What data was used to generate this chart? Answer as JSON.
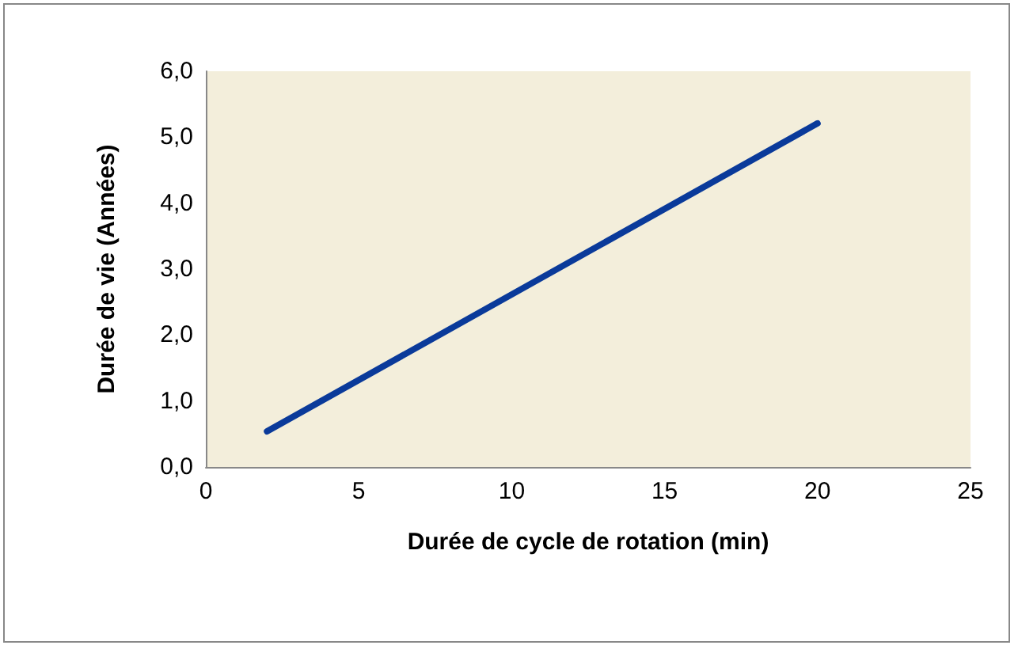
{
  "chart_data": {
    "type": "line",
    "xlabel": "Durée de cycle de rotation (min)",
    "ylabel": "Durée de vie (Années)",
    "series": [
      {
        "color": "#0a3a9a",
        "x": [
          2,
          20
        ],
        "values": [
          0.54,
          5.21
        ]
      }
    ],
    "xlim": [
      0,
      25
    ],
    "xticks": [
      0,
      5,
      10,
      15,
      20,
      25
    ],
    "ylim": [
      0,
      6
    ],
    "yticks": [
      {
        "value": 0,
        "label": "0,0"
      },
      {
        "value": 1,
        "label": "1,0"
      },
      {
        "value": 2,
        "label": "2,0"
      },
      {
        "value": 3,
        "label": "3,0"
      },
      {
        "value": 4,
        "label": "4,0"
      },
      {
        "value": 5,
        "label": "5,0"
      },
      {
        "value": 6,
        "label": "6,0"
      }
    ],
    "grid": false,
    "marker": "none",
    "line_style": "solid"
  }
}
